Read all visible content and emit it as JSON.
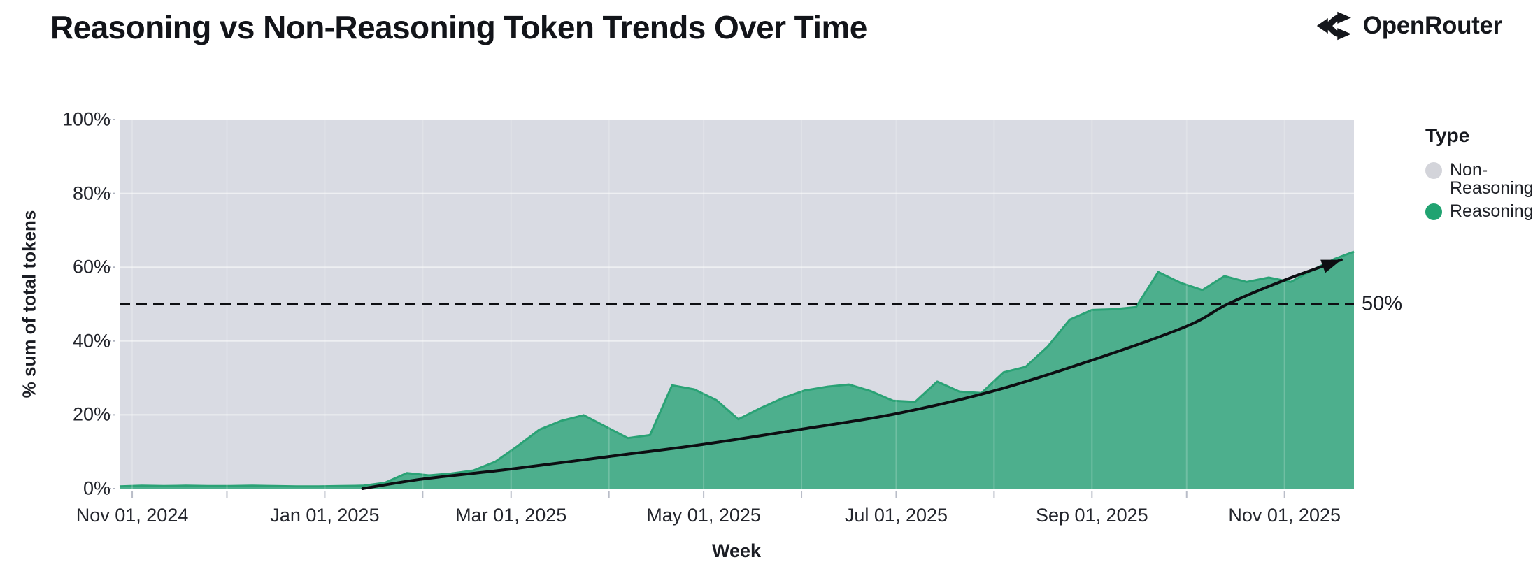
{
  "header": {
    "title": "Reasoning vs Non-Reasoning Token Trends Over Time",
    "brand": "OpenRouter"
  },
  "legend": {
    "title": "Type",
    "items": [
      {
        "label": "Non-Reasoning",
        "color": "#d3d4da"
      },
      {
        "label": "Reasoning",
        "color": "#21a371"
      }
    ]
  },
  "chart_data": {
    "type": "area",
    "stacked_percent": true,
    "title": "Reasoning vs Non-Reasoning Token Trends Over Time",
    "xlabel": "Week",
    "ylabel": "% sum of total tokens",
    "ylim": [
      0,
      100
    ],
    "x_domain": [
      "2024-10-28",
      "2025-11-23"
    ],
    "grid": true,
    "legend_position": "right",
    "colors": {
      "plot_bg": "#d9dbe3",
      "line": "#0d0e12"
    },
    "y_ticks": [
      {
        "value": 0,
        "label": "0%"
      },
      {
        "value": 20,
        "label": "20%"
      },
      {
        "value": 40,
        "label": "40%"
      },
      {
        "value": 60,
        "label": "60%"
      },
      {
        "value": 80,
        "label": "80%"
      },
      {
        "value": 100,
        "label": "100%"
      }
    ],
    "x_ticks": [
      {
        "date": "2024-11-01",
        "label": "Nov 01, 2024"
      },
      {
        "date": "2024-12-01"
      },
      {
        "date": "2025-01-01",
        "label": "Jan 01, 2025"
      },
      {
        "date": "2025-02-01"
      },
      {
        "date": "2025-03-01",
        "label": "Mar 01, 2025"
      },
      {
        "date": "2025-04-01"
      },
      {
        "date": "2025-05-01",
        "label": "May 01, 2025"
      },
      {
        "date": "2025-06-01"
      },
      {
        "date": "2025-07-01",
        "label": "Jul 01, 2025"
      },
      {
        "date": "2025-08-01"
      },
      {
        "date": "2025-09-01",
        "label": "Sep 01, 2025"
      },
      {
        "date": "2025-10-01"
      },
      {
        "date": "2025-11-01",
        "label": "Nov 01, 2025"
      }
    ],
    "series": [
      {
        "name": "Reasoning",
        "color": "#4daf8d",
        "stroke": "#2aa275",
        "points": [
          [
            "2024-10-28",
            0.6
          ],
          [
            "2024-11-04",
            0.8
          ],
          [
            "2024-11-11",
            0.7
          ],
          [
            "2024-11-18",
            0.8
          ],
          [
            "2024-11-25",
            0.7
          ],
          [
            "2024-12-02",
            0.7
          ],
          [
            "2024-12-09",
            0.8
          ],
          [
            "2024-12-16",
            0.7
          ],
          [
            "2024-12-23",
            0.6
          ],
          [
            "2024-12-30",
            0.6
          ],
          [
            "2025-01-06",
            0.7
          ],
          [
            "2025-01-13",
            0.8
          ],
          [
            "2025-01-20",
            1.6
          ],
          [
            "2025-01-27",
            4.2
          ],
          [
            "2025-02-03",
            3.6
          ],
          [
            "2025-02-10",
            4.1
          ],
          [
            "2025-02-17",
            4.9
          ],
          [
            "2025-02-24",
            7.3
          ],
          [
            "2025-03-03",
            11.5
          ],
          [
            "2025-03-10",
            16.0
          ],
          [
            "2025-03-17",
            18.4
          ],
          [
            "2025-03-24",
            19.9
          ],
          [
            "2025-03-31",
            16.8
          ],
          [
            "2025-04-07",
            13.7
          ],
          [
            "2025-04-14",
            14.5
          ],
          [
            "2025-04-21",
            28.0
          ],
          [
            "2025-04-28",
            26.9
          ],
          [
            "2025-05-05",
            24.0
          ],
          [
            "2025-05-12",
            18.8
          ],
          [
            "2025-05-19",
            21.8
          ],
          [
            "2025-05-26",
            24.5
          ],
          [
            "2025-06-02",
            26.6
          ],
          [
            "2025-06-09",
            27.6
          ],
          [
            "2025-06-16",
            28.2
          ],
          [
            "2025-06-23",
            26.4
          ],
          [
            "2025-06-30",
            23.8
          ],
          [
            "2025-07-07",
            23.5
          ],
          [
            "2025-07-14",
            29.0
          ],
          [
            "2025-07-21",
            26.3
          ],
          [
            "2025-07-28",
            25.9
          ],
          [
            "2025-08-04",
            31.5
          ],
          [
            "2025-08-11",
            33.0
          ],
          [
            "2025-08-18",
            38.5
          ],
          [
            "2025-08-25",
            45.8
          ],
          [
            "2025-09-01",
            48.4
          ],
          [
            "2025-09-08",
            48.6
          ],
          [
            "2025-09-15",
            49.2
          ],
          [
            "2025-09-22",
            58.7
          ],
          [
            "2025-09-29",
            55.8
          ],
          [
            "2025-10-06",
            53.8
          ],
          [
            "2025-10-13",
            57.6
          ],
          [
            "2025-10-20",
            56.0
          ],
          [
            "2025-10-27",
            57.2
          ],
          [
            "2025-11-03",
            56.0
          ],
          [
            "2025-11-10",
            59.3
          ],
          [
            "2025-11-17",
            62.3
          ]
        ],
        "edge_point": [
          "2025-11-23",
          64.2
        ]
      },
      {
        "name": "Non-Reasoning",
        "color": "#d9dbe3"
      }
    ],
    "reference_line": {
      "value": 50,
      "label": "50%",
      "style": "dashed"
    },
    "trend_line": {
      "style": "arrow",
      "points": [
        [
          "2025-01-13",
          0
        ],
        [
          "2025-02-01",
          2.6
        ],
        [
          "2025-03-01",
          5.3
        ],
        [
          "2025-04-01",
          8.7
        ],
        [
          "2025-05-01",
          12.0
        ],
        [
          "2025-06-01",
          16.1
        ],
        [
          "2025-07-01",
          20.3
        ],
        [
          "2025-08-01",
          26.5
        ],
        [
          "2025-09-01",
          34.8
        ],
        [
          "2025-10-01",
          44.0
        ],
        [
          "2025-10-14",
          50.0
        ],
        [
          "2025-11-01",
          56.5
        ],
        [
          "2025-11-19",
          62.0
        ]
      ]
    }
  }
}
